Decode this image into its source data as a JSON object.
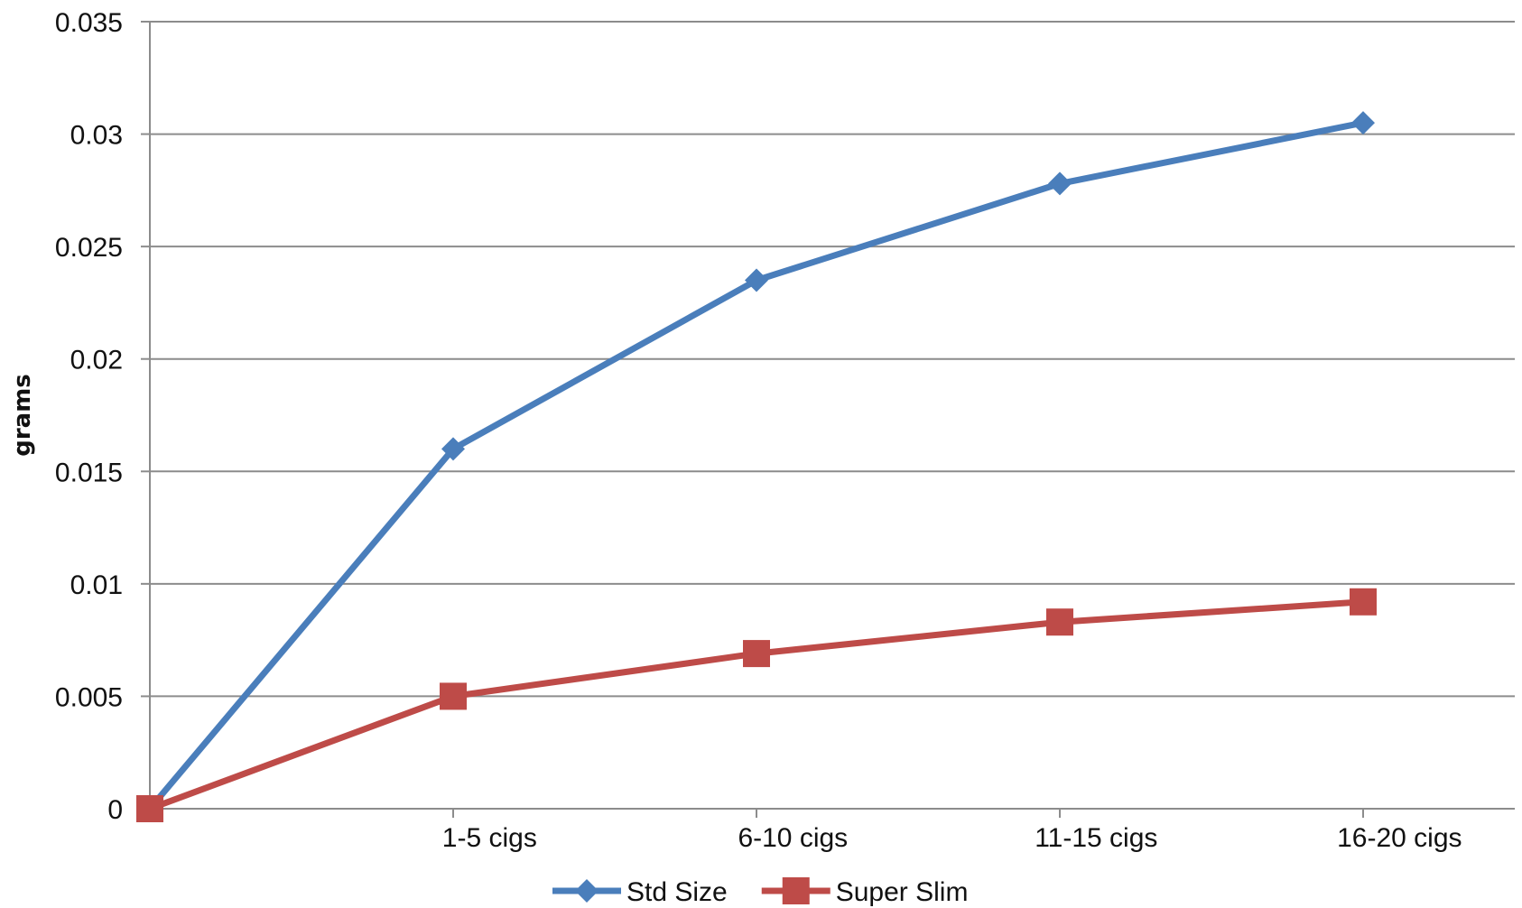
{
  "chart_data": {
    "type": "line",
    "categories": [
      "",
      "1-5 cigs",
      "6-10 cigs",
      "11-15 cigs",
      "16-20 cigs"
    ],
    "series": [
      {
        "name": "Std Size",
        "values": [
          0,
          0.016,
          0.0235,
          0.0278,
          0.0305
        ],
        "color": "#4a7ebb",
        "marker": "diamond"
      },
      {
        "name": "Super Slim",
        "values": [
          0,
          0.005,
          0.0069,
          0.0083,
          0.0092
        ],
        "color": "#be4b48",
        "marker": "square"
      }
    ],
    "yticks": [
      "0",
      "0.005",
      "0.01",
      "0.015",
      "0.02",
      "0.025",
      "0.03",
      "0.035"
    ],
    "ylim": [
      0,
      0.035
    ],
    "ylabel": "grams",
    "xlabel": "",
    "grid": true,
    "legend_position": "bottom"
  }
}
